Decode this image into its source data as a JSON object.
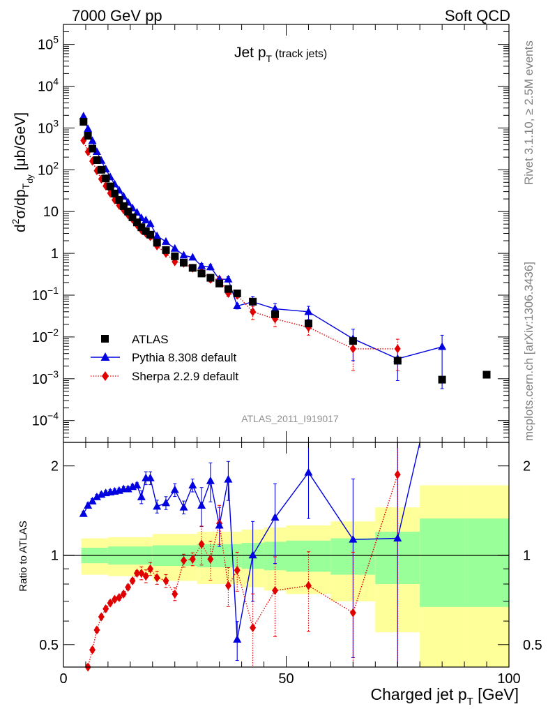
{
  "header": {
    "left": "7000 GeV pp",
    "right": "Soft QCD"
  },
  "side_labels": {
    "rivet": "Rivet 3.1.10, ≥ 2.5M events",
    "mcplots": "mcplots.cern.ch [arXiv:1306.3436]"
  },
  "chart_data": [
    {
      "type": "scatter",
      "panel": "main",
      "title_main": "Jet p",
      "title_sub": "T",
      "title_suffix": " (track jets)",
      "ylabel": "d²σ/dp_T dy [μb/GeV]",
      "ylabel_parts": {
        "d": "d",
        "sup2": "2",
        "sigma": "σ/dp",
        "subT": "T",
        "subdy": "dy",
        "unit": " [μb/GeV]"
      },
      "watermark": "ATLAS_2011_I919017",
      "y_scale": "log",
      "xlim": [
        0,
        100
      ],
      "ylim": [
        3e-05,
        300000
      ],
      "y_tick_labels": [
        {
          "value": 0.0001,
          "mant": "10",
          "exp": "−4"
        },
        {
          "value": 0.001,
          "mant": "10",
          "exp": "−3"
        },
        {
          "value": 0.01,
          "mant": "10",
          "exp": "−2"
        },
        {
          "value": 0.1,
          "mant": "10",
          "exp": "−1"
        },
        {
          "value": 1,
          "mant": "1",
          "exp": ""
        },
        {
          "value": 10,
          "mant": "10",
          "exp": ""
        },
        {
          "value": 100,
          "mant": "10",
          "exp": "2"
        },
        {
          "value": 1000,
          "mant": "10",
          "exp": "3"
        },
        {
          "value": 10000,
          "mant": "10",
          "exp": "4"
        },
        {
          "value": 100000,
          "mant": "10",
          "exp": "5"
        }
      ],
      "legend_position": "lower-left",
      "series": [
        {
          "name": "ATLAS",
          "color": "#000000",
          "marker": "square",
          "x": [
            4.5,
            5.5,
            6.5,
            7.5,
            8.5,
            9.5,
            10.5,
            11.5,
            12.5,
            13.5,
            14.5,
            15.5,
            16.5,
            17.5,
            18.5,
            19.5,
            21,
            23,
            25,
            27,
            29,
            31,
            33,
            35,
            37,
            39,
            42.5,
            47.5,
            55,
            65,
            75,
            85,
            95
          ],
          "y": [
            1400,
            650,
            320,
            170,
            100,
            62,
            40,
            27,
            19,
            13.5,
            10,
            7.3,
            5.5,
            4.2,
            3.4,
            2.8,
            1.8,
            1.2,
            0.85,
            0.6,
            0.45,
            0.33,
            0.26,
            0.19,
            0.14,
            0.11,
            0.07,
            0.035,
            0.021,
            0.008,
            0.0027,
            0.00095,
            0.00125
          ]
        },
        {
          "name": "Pythia 8.308 default",
          "color": "#0000e0",
          "marker": "triangle",
          "line": "solid",
          "x": [
            4.5,
            5.5,
            6.5,
            7.5,
            8.5,
            9.5,
            10.5,
            11.5,
            12.5,
            13.5,
            14.5,
            15.5,
            16.5,
            17.5,
            18.5,
            19.5,
            21,
            23,
            25,
            27,
            29,
            31,
            33,
            35,
            37,
            39,
            42.5,
            47.5,
            55,
            65,
            75,
            85
          ],
          "y": [
            1900,
            950,
            490,
            270,
            165,
            103,
            67,
            45,
            32,
            23,
            16.5,
            12,
            9.5,
            7,
            6.2,
            5.1,
            2.6,
            1.9,
            1.3,
            0.9,
            0.8,
            0.5,
            0.47,
            0.24,
            0.24,
            0.055,
            0.069,
            0.047,
            0.04,
            0.009,
            0.003,
            0.0058
          ]
        },
        {
          "name": "Sherpa 2.2.9 default",
          "color": "#e00000",
          "marker": "diamond",
          "line": "dotted",
          "x": [
            4.5,
            5.5,
            6.5,
            7.5,
            8.5,
            9.5,
            10.5,
            11.5,
            12.5,
            13.5,
            14.5,
            15.5,
            16.5,
            17.5,
            18.5,
            19.5,
            21,
            23,
            25,
            27,
            29,
            31,
            33,
            35,
            37,
            39,
            42.5,
            47.5,
            55,
            65,
            75
          ],
          "y": [
            500,
            270,
            160,
            95,
            60,
            41,
            27.5,
            19,
            14,
            11,
            8.3,
            6.5,
            4.8,
            3.6,
            3.0,
            2.5,
            1.5,
            1.0,
            0.63,
            0.58,
            0.44,
            0.36,
            0.24,
            0.24,
            0.11,
            0.1,
            0.04,
            0.027,
            0.017,
            0.0052,
            0.0052
          ]
        }
      ]
    },
    {
      "type": "scatter",
      "panel": "ratio",
      "ylabel": "Ratio to ATLAS",
      "xlabel": "Charged jet p",
      "xlabel_sub": "T",
      "xlabel_unit": " [GeV]",
      "y_scale": "log",
      "xlim": [
        0,
        100
      ],
      "ylim": [
        0.42,
        2.4
      ],
      "x_tick_labels": [
        "0",
        "50",
        "100"
      ],
      "y_tick_labels": [
        "0.5",
        "1",
        "2"
      ],
      "uncertainty_band": {
        "inner_color": "#99ff99",
        "outer_color": "#ffff99",
        "bins": [
          {
            "x0": 4,
            "x1": 5,
            "inner": 0.06,
            "outer": 0.14
          },
          {
            "x0": 5,
            "x1": 10,
            "inner": 0.06,
            "outer": 0.14
          },
          {
            "x0": 10,
            "x1": 20,
            "inner": 0.07,
            "outer": 0.15
          },
          {
            "x0": 20,
            "x1": 30,
            "inner": 0.08,
            "outer": 0.18
          },
          {
            "x0": 30,
            "x1": 40,
            "inner": 0.09,
            "outer": 0.2
          },
          {
            "x0": 40,
            "x1": 45,
            "inner": 0.1,
            "outer": 0.22
          },
          {
            "x0": 45,
            "x1": 50,
            "inner": 0.11,
            "outer": 0.24
          },
          {
            "x0": 50,
            "x1": 60,
            "inner": 0.12,
            "outer": 0.26
          },
          {
            "x0": 60,
            "x1": 70,
            "inner": 0.14,
            "outer": 0.3
          },
          {
            "x0": 70,
            "x1": 80,
            "inner": 0.2,
            "outer": 0.45
          },
          {
            "x0": 80,
            "x1": 90,
            "inner": 0.33,
            "outer": 0.72
          },
          {
            "x0": 90,
            "x1": 100,
            "inner": 0.33,
            "outer": 0.72
          }
        ]
      },
      "series": [
        {
          "name": "Pythia 8.308 default",
          "color": "#0000e0",
          "x": [
            4.5,
            5.5,
            6.5,
            7.5,
            8.5,
            9.5,
            10.5,
            11.5,
            12.5,
            13.5,
            14.5,
            15.5,
            16.5,
            17.5,
            18.5,
            19.5,
            21,
            23,
            25,
            27,
            29,
            31,
            33,
            35,
            37,
            39,
            42.5,
            47.5,
            55,
            65,
            75,
            80
          ],
          "y": [
            1.38,
            1.47,
            1.52,
            1.57,
            1.6,
            1.62,
            1.63,
            1.64,
            1.65,
            1.67,
            1.67,
            1.7,
            1.72,
            1.57,
            1.82,
            1.82,
            1.46,
            1.5,
            1.66,
            1.45,
            1.72,
            1.47,
            1.78,
            1.26,
            1.8,
            0.52,
            1.0,
            1.34,
            1.9,
            1.13,
            1.14,
            2.4
          ]
        },
        {
          "name": "Sherpa 2.2.9 default",
          "color": "#e00000",
          "x": [
            5.5,
            6.5,
            7.5,
            8.5,
            9.5,
            10.5,
            11.5,
            12.5,
            13.5,
            14.5,
            15.5,
            16.5,
            17.5,
            18.5,
            19.5,
            21,
            23,
            25,
            27,
            29,
            31,
            33,
            35,
            37,
            39,
            42.5,
            47.5,
            55,
            65,
            75
          ],
          "y": [
            0.42,
            0.48,
            0.56,
            0.62,
            0.66,
            0.69,
            0.71,
            0.72,
            0.74,
            0.78,
            0.82,
            0.87,
            0.87,
            0.85,
            0.9,
            0.84,
            0.82,
            0.74,
            0.96,
            0.97,
            1.09,
            0.97,
            1.28,
            0.79,
            0.89,
            0.57,
            0.76,
            0.79,
            0.64,
            1.87
          ]
        }
      ]
    }
  ]
}
